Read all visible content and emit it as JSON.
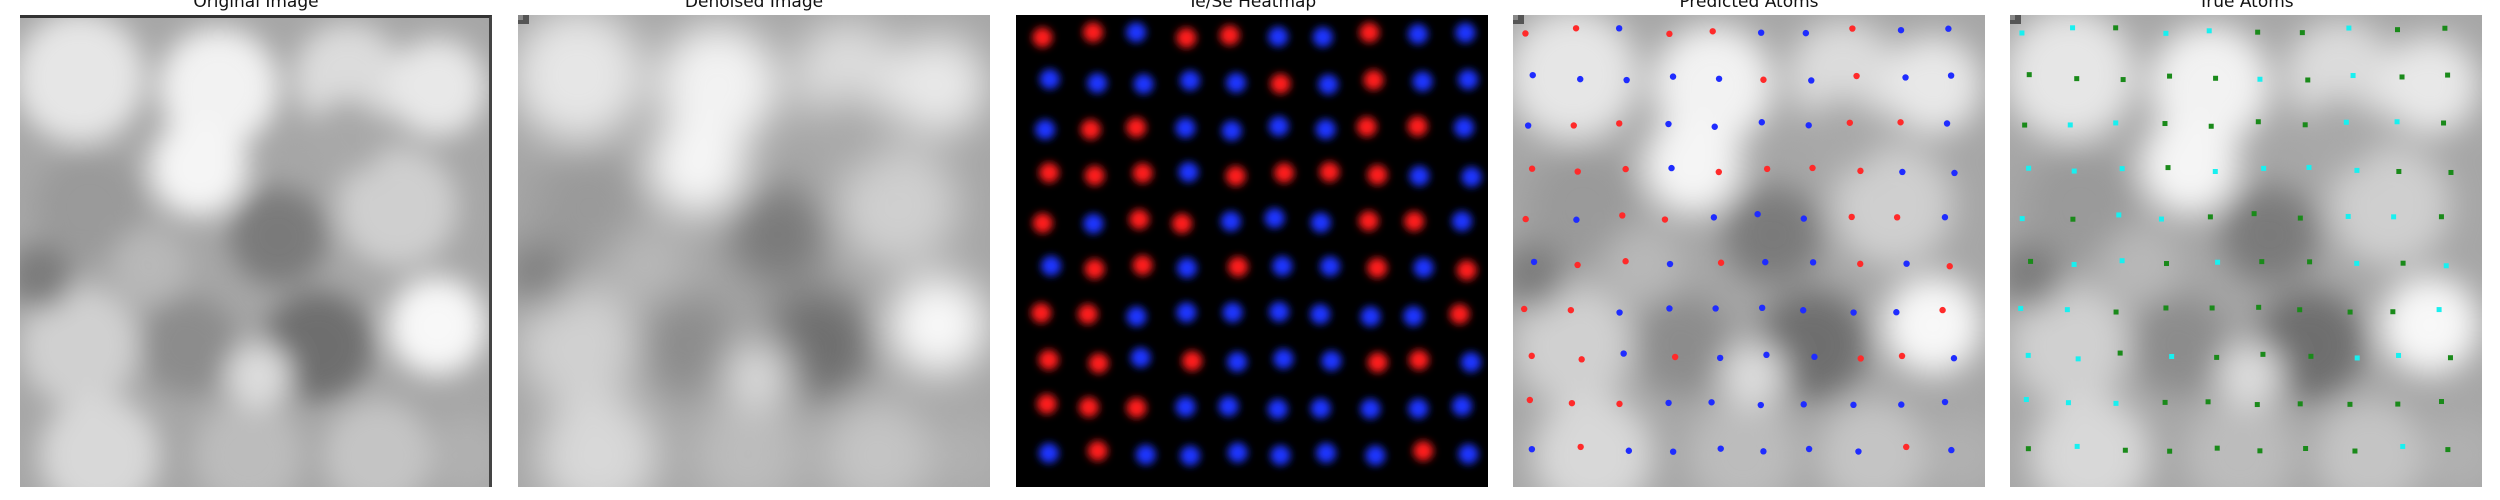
{
  "panels": [
    {
      "id": "original",
      "title": "Original Image"
    },
    {
      "id": "denoised",
      "title": "Denoised Image"
    },
    {
      "id": "heatmap",
      "title": "Te/Se Heatmap"
    },
    {
      "id": "predicted",
      "title": "Predicted Atoms"
    },
    {
      "id": "true",
      "title": "True Atoms"
    }
  ],
  "colors": {
    "te": "#ff2a2a",
    "se": "#1f2cff",
    "heat_te": "#ff1a1a",
    "heat_se": "#1f35ff",
    "true_te": "#18f0f0",
    "true_se": "#1a8a1a"
  }
}
